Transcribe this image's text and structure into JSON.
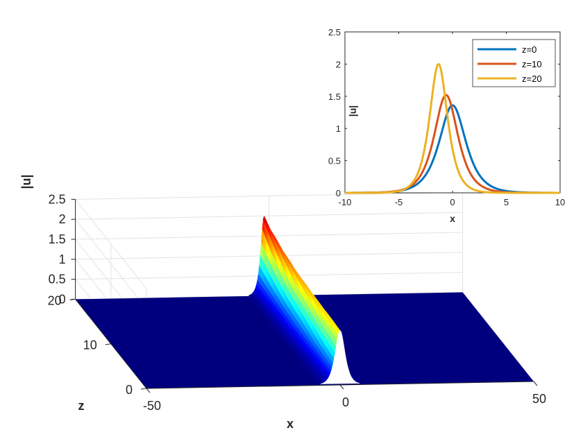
{
  "chart_data": [
    {
      "type": "surface",
      "xlabel": "x",
      "ylabel": "z",
      "zlabel": "|u|",
      "xlim": [
        -50,
        50
      ],
      "ylim": [
        0,
        20
      ],
      "zlim": [
        0,
        2.5
      ],
      "x_ticks": [
        "-50",
        "0",
        "50"
      ],
      "y_ticks": [
        "0",
        "10",
        "20"
      ],
      "z_ticks": [
        "0",
        "0.5",
        "1",
        "1.5",
        "2",
        "2.5"
      ],
      "grid": true,
      "colormap": "jet",
      "peak_profile": {
        "z": [
          0,
          2,
          4,
          6,
          8,
          10,
          12,
          14,
          16,
          18,
          20
        ],
        "amplitude": [
          1.36,
          1.39,
          1.42,
          1.45,
          1.49,
          1.52,
          1.57,
          1.64,
          1.73,
          1.84,
          2.0
        ],
        "center_x": [
          0,
          -0.1,
          -0.2,
          -0.35,
          -0.5,
          -0.6,
          -0.7,
          -0.85,
          -1.0,
          -1.15,
          -1.3
        ]
      }
    },
    {
      "type": "line",
      "xlabel": "x",
      "ylabel": "|u|",
      "xlim": [
        -10,
        10
      ],
      "ylim": [
        0,
        2.5
      ],
      "x_ticks": [
        "-10",
        "-5",
        "0",
        "5",
        "10"
      ],
      "y_ticks": [
        "0",
        "0.5",
        "1",
        "1.5",
        "2",
        "2.5"
      ],
      "legend_position": "top-right",
      "series": [
        {
          "name": "z=0",
          "color": "#0072BD",
          "amplitude": 1.36,
          "center": 0.0,
          "x": [
            -10,
            -4,
            -3,
            -2,
            -1,
            -0.5,
            0,
            0.5,
            1,
            2,
            3,
            4,
            10
          ],
          "y": [
            0,
            0.035,
            0.1,
            0.26,
            0.63,
            0.97,
            1.36,
            1.2,
            0.87,
            0.39,
            0.15,
            0.05,
            0
          ]
        },
        {
          "name": "z=10",
          "color": "#D95319",
          "amplitude": 1.52,
          "center": -0.6,
          "x": [
            -10,
            -4,
            -3,
            -2,
            -1,
            -0.6,
            0,
            1,
            2,
            3,
            10
          ],
          "y": [
            0,
            0.05,
            0.15,
            0.42,
            1.15,
            1.52,
            1.2,
            0.48,
            0.17,
            0.06,
            0
          ]
        },
        {
          "name": "z=20",
          "color": "#EDB120",
          "amplitude": 2.0,
          "center": -1.3,
          "x": [
            -10,
            -4,
            -3,
            -2,
            -1.3,
            -0.5,
            0,
            1,
            2,
            10
          ],
          "y": [
            0,
            0.01,
            0.12,
            0.75,
            2.0,
            1.05,
            0.45,
            0.08,
            0.01,
            0
          ]
        }
      ]
    }
  ]
}
